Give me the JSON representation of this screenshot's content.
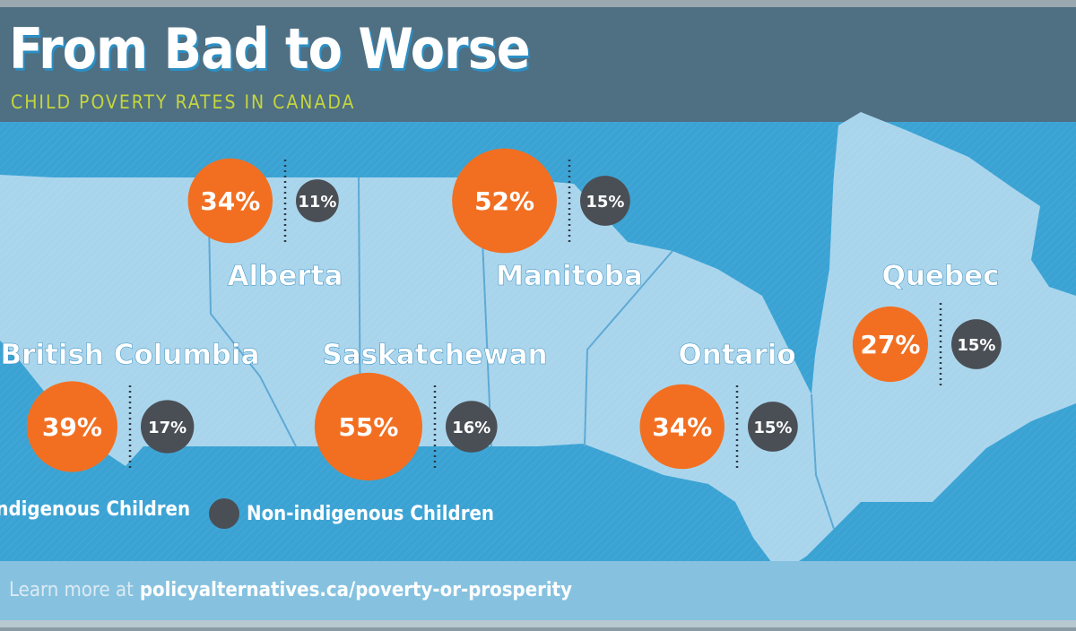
{
  "header": {
    "title": "From Bad to Worse",
    "subtitle": "CHILD POVERTY RATES IN CANADA"
  },
  "footer": {
    "prefix": "Learn more at",
    "link": "policyalternatives.ca/poverty-or-prosperity"
  },
  "colors": {
    "indigenous": "#f26f21",
    "non_indigenous": "#4a4f55",
    "water": "#3ba3d4",
    "land": "#a9d5ec",
    "header": "#4f6f83"
  },
  "chart_data": {
    "type": "bubble-map",
    "title": "From Bad to Worse",
    "subtitle": "CHILD POVERTY RATES IN CANADA",
    "unit": "%",
    "legend": [
      "Indigenous Children",
      "Non-indigenous Children"
    ],
    "legend_placement": "bottom-left",
    "series": [
      {
        "name": "Indigenous Children",
        "values": [
          34,
          52,
          39,
          55,
          34,
          27
        ]
      },
      {
        "name": "Non-indigenous Children",
        "values": [
          11,
          15,
          17,
          16,
          15,
          15
        ]
      }
    ],
    "categories": [
      "Alberta",
      "Manitoba",
      "British Columbia",
      "Saskatchewan",
      "Ontario",
      "Quebec"
    ],
    "labels": {
      "indigenous": [
        "34%",
        "52%",
        "39%",
        "55%",
        "34%",
        "27%"
      ],
      "non_indigenous": [
        "11%",
        "15%",
        "17%",
        "16%",
        "15%",
        "15%"
      ]
    }
  }
}
